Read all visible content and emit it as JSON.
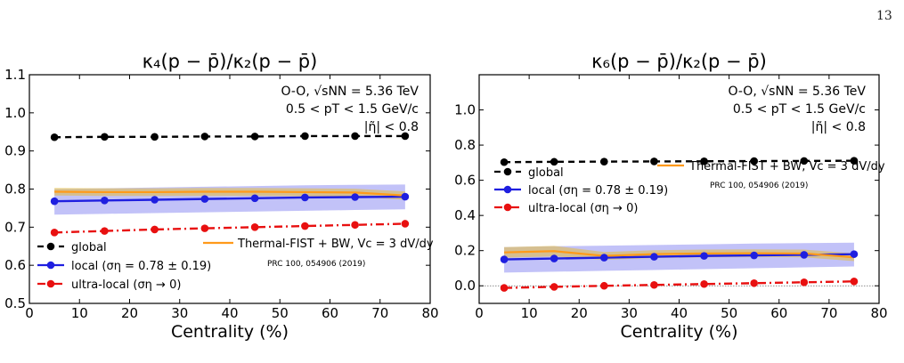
{
  "page_number": "13",
  "chart_data": [
    {
      "type": "line",
      "title": "κ₄(p − p̄)/κ₂(p − p̄)",
      "xlabel": "Centrality (%)",
      "ylabel": "",
      "xlim": [
        0,
        80
      ],
      "ylim": [
        0.5,
        1.1
      ],
      "xticks": [
        "0",
        "10",
        "20",
        "30",
        "40",
        "50",
        "60",
        "70",
        "80"
      ],
      "yticks": [
        "0.5",
        "0.6",
        "0.7",
        "0.8",
        "0.9",
        "1.0",
        "1.1"
      ],
      "annotations": [
        "O-O, √sNN = 5.36 TeV",
        "0.5 < pT < 1.5 GeV/c",
        "|η̃| < 0.8"
      ],
      "model_label": "Thermal-FIST + BW, Vc = 3 dV/dy",
      "model_ref": "PRC 100, 054906 (2019)",
      "x": [
        5,
        15,
        25,
        35,
        45,
        55,
        65,
        75
      ],
      "series": [
        {
          "name": "global",
          "color": "#000000",
          "style": "dashed",
          "values": [
            0.936,
            0.937,
            0.937,
            0.938,
            0.938,
            0.939,
            0.939,
            0.939
          ]
        },
        {
          "name": "local (ση = 0.78 ± 0.19)",
          "color": "#1f1fe0",
          "style": "solid",
          "values": [
            0.768,
            0.77,
            0.772,
            0.774,
            0.776,
            0.778,
            0.779,
            0.78
          ],
          "band_low": [
            0.733,
            0.735,
            0.737,
            0.739,
            0.741,
            0.743,
            0.745,
            0.747
          ],
          "band_high": [
            0.8,
            0.802,
            0.804,
            0.806,
            0.808,
            0.81,
            0.811,
            0.812
          ]
        },
        {
          "name": "ultra-local (ση → 0)",
          "color": "#e81010",
          "style": "dashdot",
          "values": [
            0.686,
            0.69,
            0.694,
            0.697,
            0.7,
            0.703,
            0.706,
            0.709
          ]
        },
        {
          "name": "Thermal-FIST + BW",
          "color": "#ff9a1a",
          "style": "solid",
          "kind": "model",
          "values": [
            0.793,
            0.792,
            0.792,
            0.793,
            0.793,
            0.792,
            0.791,
            0.783
          ],
          "band_low": [
            0.783,
            0.782,
            0.782,
            0.782,
            0.782,
            0.781,
            0.78,
            0.772
          ],
          "band_high": [
            0.803,
            0.802,
            0.802,
            0.803,
            0.803,
            0.802,
            0.801,
            0.794
          ]
        }
      ],
      "legend": "bottom-left"
    },
    {
      "type": "line",
      "title": "κ₆(p − p̄)/κ₂(p − p̄)",
      "xlabel": "Centrality (%)",
      "ylabel": "",
      "xlim": [
        0,
        80
      ],
      "ylim": [
        -0.1,
        1.2
      ],
      "xticks": [
        "0",
        "10",
        "20",
        "30",
        "40",
        "50",
        "60",
        "70",
        "80"
      ],
      "yticks": [
        "0.0",
        "0.2",
        "0.4",
        "0.6",
        "0.8",
        "1.0"
      ],
      "annotations": [
        "O-O, √sNN = 5.36 TeV",
        "0.5 < pT < 1.5 GeV/c",
        "|η̃| < 0.8"
      ],
      "model_label": "Thermal-FIST + BW, Vc = 3 dV/dy",
      "model_ref": "PRC 100, 054906 (2019)",
      "x": [
        5,
        15,
        25,
        35,
        45,
        55,
        65,
        75
      ],
      "series": [
        {
          "name": "global",
          "color": "#000000",
          "style": "dashed",
          "values": [
            0.703,
            0.705,
            0.706,
            0.707,
            0.708,
            0.709,
            0.71,
            0.711
          ]
        },
        {
          "name": "local (ση = 0.78 ± 0.19)",
          "color": "#1f1fe0",
          "style": "solid",
          "values": [
            0.15,
            0.155,
            0.16,
            0.165,
            0.17,
            0.173,
            0.176,
            0.18
          ],
          "band_low": [
            0.075,
            0.08,
            0.085,
            0.09,
            0.095,
            0.1,
            0.105,
            0.11
          ],
          "band_high": [
            0.22,
            0.225,
            0.228,
            0.232,
            0.236,
            0.24,
            0.243,
            0.245
          ]
        },
        {
          "name": "ultra-local (ση → 0)",
          "color": "#e81010",
          "style": "dashdot",
          "values": [
            -0.012,
            -0.006,
            0.0,
            0.005,
            0.01,
            0.015,
            0.02,
            0.025
          ]
        },
        {
          "name": "Thermal-FIST + BW",
          "color": "#ff9a1a",
          "style": "solid",
          "kind": "model",
          "values": [
            0.19,
            0.197,
            0.17,
            0.18,
            0.184,
            0.185,
            0.184,
            0.162
          ],
          "band_low": [
            0.16,
            0.167,
            0.148,
            0.158,
            0.162,
            0.163,
            0.162,
            0.14
          ],
          "band_high": [
            0.22,
            0.227,
            0.192,
            0.202,
            0.206,
            0.207,
            0.206,
            0.184
          ]
        }
      ],
      "reference_line": 0.0,
      "legend": "upper-left"
    }
  ]
}
